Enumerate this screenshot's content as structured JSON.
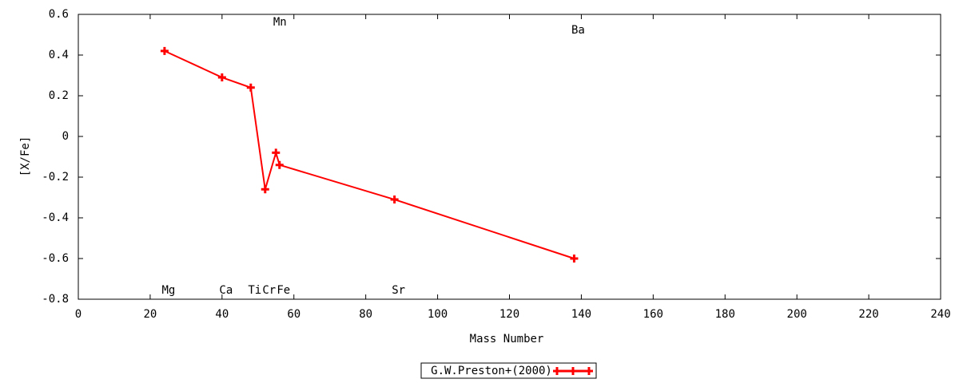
{
  "chart_data": {
    "type": "line",
    "xlabel": "Mass Number",
    "ylabel": "[X/Fe]",
    "x": [
      24,
      40,
      48,
      52,
      55,
      56,
      88,
      138
    ],
    "point_labels": [
      "Mg",
      "Ca",
      "Ti",
      "Cr",
      "Mn",
      "Fe",
      "Sr",
      "Ba"
    ],
    "series": [
      {
        "name": "G.W.Preston+(2000)",
        "color": "#ff0000",
        "values": [
          0.42,
          0.29,
          0.24,
          -0.26,
          -0.08,
          -0.14,
          -0.31,
          -0.6
        ]
      }
    ],
    "xlim": [
      0,
      240
    ],
    "xticks": [
      0,
      20,
      40,
      60,
      80,
      100,
      120,
      140,
      160,
      180,
      200,
      220,
      240
    ],
    "ylim": [
      -0.8,
      0.6
    ],
    "yticks": [
      -0.8,
      -0.6,
      -0.4,
      -0.2,
      0,
      0.2,
      0.4,
      0.6
    ],
    "legend": "bottom"
  }
}
